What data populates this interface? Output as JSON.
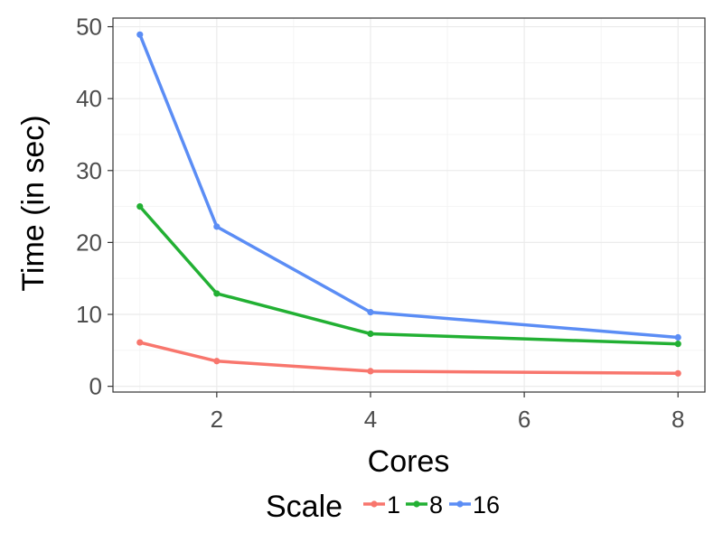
{
  "chart_data": {
    "type": "line",
    "xlabel": "Cores",
    "ylabel": "Time (in sec)",
    "x": [
      1,
      2,
      4,
      8
    ],
    "xlim": [
      0.65,
      8.35
    ],
    "ylim": [
      -0.8,
      51.2
    ],
    "xticks": [
      2,
      4,
      6,
      8
    ],
    "yticks": [
      0,
      10,
      20,
      30,
      40,
      50
    ],
    "grid": true,
    "legend": {
      "title": "Scale",
      "position": "bottom"
    },
    "series": [
      {
        "name": "1",
        "color": "#F8766D",
        "values": [
          6.1,
          3.5,
          2.1,
          1.8
        ]
      },
      {
        "name": "8",
        "color": "#22B033",
        "values": [
          25.0,
          12.9,
          7.3,
          5.9
        ]
      },
      {
        "name": "16",
        "color": "#5B8DF5",
        "values": [
          48.9,
          22.2,
          10.3,
          6.8
        ]
      }
    ]
  }
}
